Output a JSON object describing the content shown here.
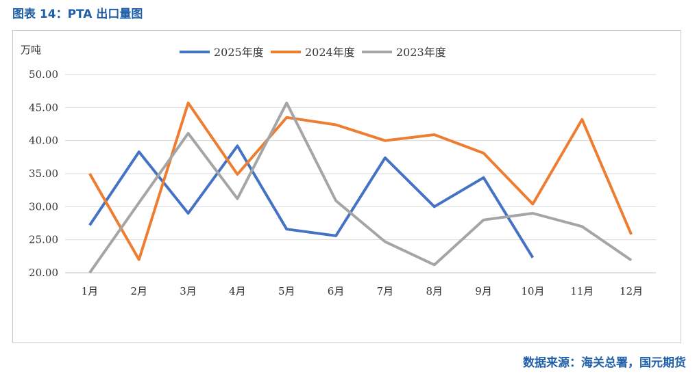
{
  "header": {
    "title": "图表 14：PTA 出口量图"
  },
  "footer": {
    "source": "数据来源：海关总署，国元期货"
  },
  "chart_data": {
    "type": "line",
    "unit_label": "万吨",
    "categories": [
      "1月",
      "2月",
      "3月",
      "4月",
      "5月",
      "6月",
      "7月",
      "8月",
      "9月",
      "10月",
      "11月",
      "12月"
    ],
    "ylim": [
      20,
      50
    ],
    "yticks": [
      "20.00",
      "25.00",
      "30.00",
      "35.00",
      "40.00",
      "45.00",
      "50.00"
    ],
    "grid": true,
    "legend_position": "top",
    "series": [
      {
        "name": "2025年度",
        "color": "#4472c4",
        "values": [
          27.2,
          38.3,
          29.0,
          39.2,
          26.6,
          25.6,
          37.4,
          30.0,
          34.4,
          22.3,
          null,
          null
        ]
      },
      {
        "name": "2024年度",
        "color": "#ed7d31",
        "values": [
          35.0,
          22.0,
          45.7,
          34.9,
          43.5,
          42.4,
          40.0,
          40.9,
          38.1,
          30.4,
          43.2,
          25.8
        ]
      },
      {
        "name": "2023年度",
        "color": "#a5a5a5",
        "values": [
          20.0,
          30.6,
          41.1,
          31.2,
          45.7,
          30.9,
          24.7,
          21.2,
          28.0,
          29.0,
          27.0,
          21.9
        ]
      }
    ]
  }
}
